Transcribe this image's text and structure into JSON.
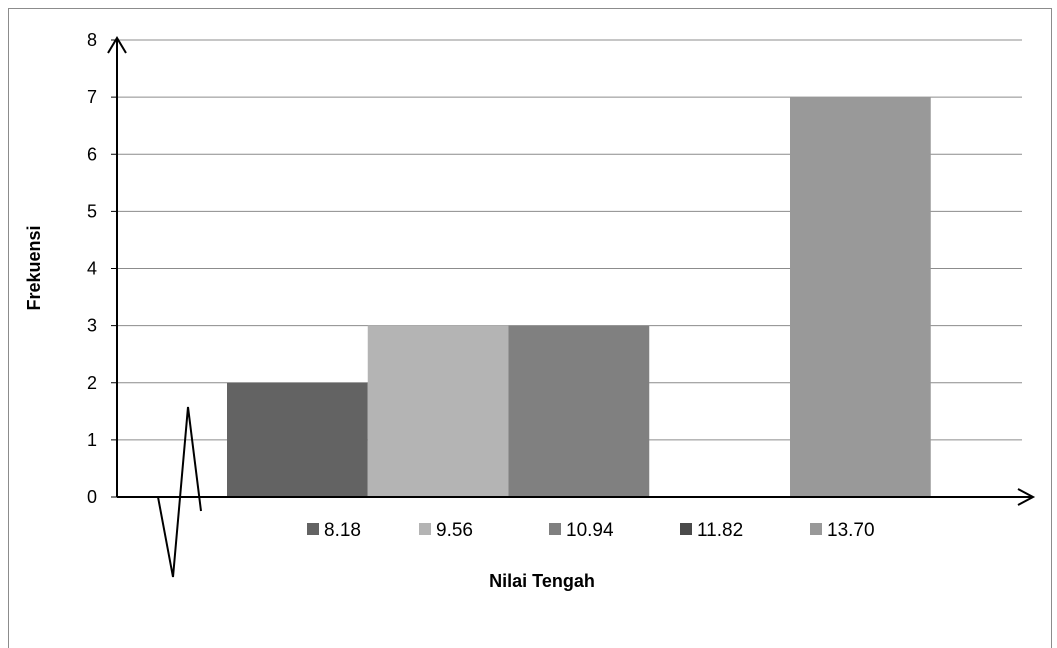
{
  "chart_data": {
    "type": "bar",
    "title": "",
    "xlabel": "Nilai Tengah",
    "ylabel": "Frekuensi",
    "ylim": [
      0,
      8
    ],
    "yticks": [
      "0",
      "1",
      "2",
      "3",
      "4",
      "5",
      "6",
      "7",
      "8"
    ],
    "grid": true,
    "legend_position": "bottom",
    "series": [
      {
        "name": "8.18",
        "value": 2,
        "color": "#636363"
      },
      {
        "name": "9.56",
        "value": 3,
        "color": "#b4b4b4"
      },
      {
        "name": "10.94",
        "value": 3,
        "color": "#808080"
      },
      {
        "name": "11.82",
        "value": 0,
        "color": "#4a4a4a"
      },
      {
        "name": "13.70",
        "value": 7,
        "color": "#999999"
      }
    ]
  }
}
